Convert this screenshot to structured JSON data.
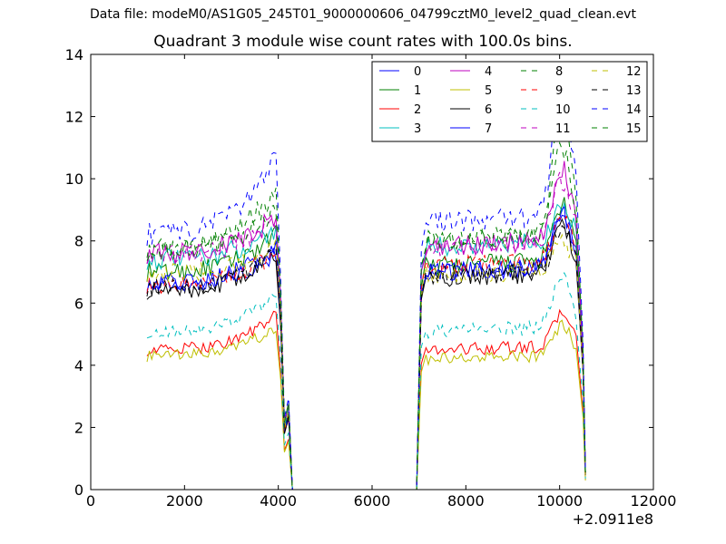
{
  "figure": {
    "suptitle": "Data file: modeM0/AS1G05_245T01_9000000606_04799cztM0_level2_quad_clean.evt",
    "title": "Quadrant 3 module wise count rates with 100.0s bins."
  },
  "chart_data": {
    "type": "line",
    "title": "Quadrant 3 module wise count rates with 100.0s bins.",
    "xlabel": "",
    "ylabel": "",
    "xlim": [
      0,
      12000
    ],
    "ylim": [
      0,
      14
    ],
    "x_offset_label": "+2.0911e8",
    "xticks": [
      0,
      2000,
      4000,
      6000,
      8000,
      10000,
      12000
    ],
    "yticks": [
      0,
      2,
      4,
      6,
      8,
      10,
      12,
      14
    ],
    "grid": false,
    "legend_position": "top-right",
    "legend_columns": 4,
    "segments": [
      {
        "x_start": 1200,
        "x_end": 4300
      },
      {
        "x_start": 6950,
        "x_end": 10550
      }
    ],
    "series": [
      {
        "name": "0",
        "color": "#0000ff",
        "dash": "solid",
        "level_a": 6.6,
        "level_b": 7.0,
        "peak_a": 7.6,
        "peak_b": 8.6
      },
      {
        "name": "1",
        "color": "#008000",
        "dash": "solid",
        "level_a": 7.0,
        "level_b": 7.2,
        "peak_a": 8.2,
        "peak_b": 9.0
      },
      {
        "name": "2",
        "color": "#ff0000",
        "dash": "solid",
        "level_a": 4.5,
        "level_b": 4.5,
        "peak_a": 5.6,
        "peak_b": 5.6
      },
      {
        "name": "3",
        "color": "#00bfbf",
        "dash": "solid",
        "level_a": 7.4,
        "level_b": 7.8,
        "peak_a": 8.4,
        "peak_b": 9.0
      },
      {
        "name": "4",
        "color": "#bf00bf",
        "dash": "solid",
        "level_a": 7.6,
        "level_b": 7.8,
        "peak_a": 8.8,
        "peak_b": 10.2
      },
      {
        "name": "5",
        "color": "#bfbf00",
        "dash": "solid",
        "level_a": 4.3,
        "level_b": 4.2,
        "peak_a": 5.2,
        "peak_b": 5.2
      },
      {
        "name": "6",
        "color": "#000000",
        "dash": "solid",
        "level_a": 6.4,
        "level_b": 6.8,
        "peak_a": 7.6,
        "peak_b": 8.4
      },
      {
        "name": "7",
        "color": "#0000ff",
        "dash": "solid",
        "level_a": 6.7,
        "level_b": 7.0,
        "peak_a": 7.8,
        "peak_b": 8.8
      },
      {
        "name": "8",
        "color": "#008000",
        "dash": "dashed",
        "level_a": 7.8,
        "level_b": 8.0,
        "peak_a": 9.6,
        "peak_b": 10.8
      },
      {
        "name": "9",
        "color": "#ff0000",
        "dash": "dashed",
        "level_a": 6.6,
        "level_b": 7.2,
        "peak_a": 7.6,
        "peak_b": 8.6
      },
      {
        "name": "10",
        "color": "#00bfbf",
        "dash": "dashed",
        "level_a": 5.1,
        "level_b": 5.1,
        "peak_a": 6.3,
        "peak_b": 6.8
      },
      {
        "name": "11",
        "color": "#bf00bf",
        "dash": "dashed",
        "level_a": 7.6,
        "level_b": 7.8,
        "peak_a": 8.6,
        "peak_b": 9.8
      },
      {
        "name": "12",
        "color": "#bfbf00",
        "dash": "dashed",
        "level_a": 7.0,
        "level_b": 6.9,
        "peak_a": 7.8,
        "peak_b": 7.8
      },
      {
        "name": "13",
        "color": "#000000",
        "dash": "dashed",
        "level_a": 6.5,
        "level_b": 6.9,
        "peak_a": 7.6,
        "peak_b": 8.2
      },
      {
        "name": "14",
        "color": "#0000ff",
        "dash": "dashed",
        "level_a": 8.2,
        "level_b": 8.6,
        "peak_a": 10.8,
        "peak_b": 13.0
      },
      {
        "name": "15",
        "color": "#008000",
        "dash": "dashed",
        "level_a": 7.7,
        "level_b": 8.0,
        "peak_a": 9.0,
        "peak_b": 12.0
      }
    ]
  }
}
